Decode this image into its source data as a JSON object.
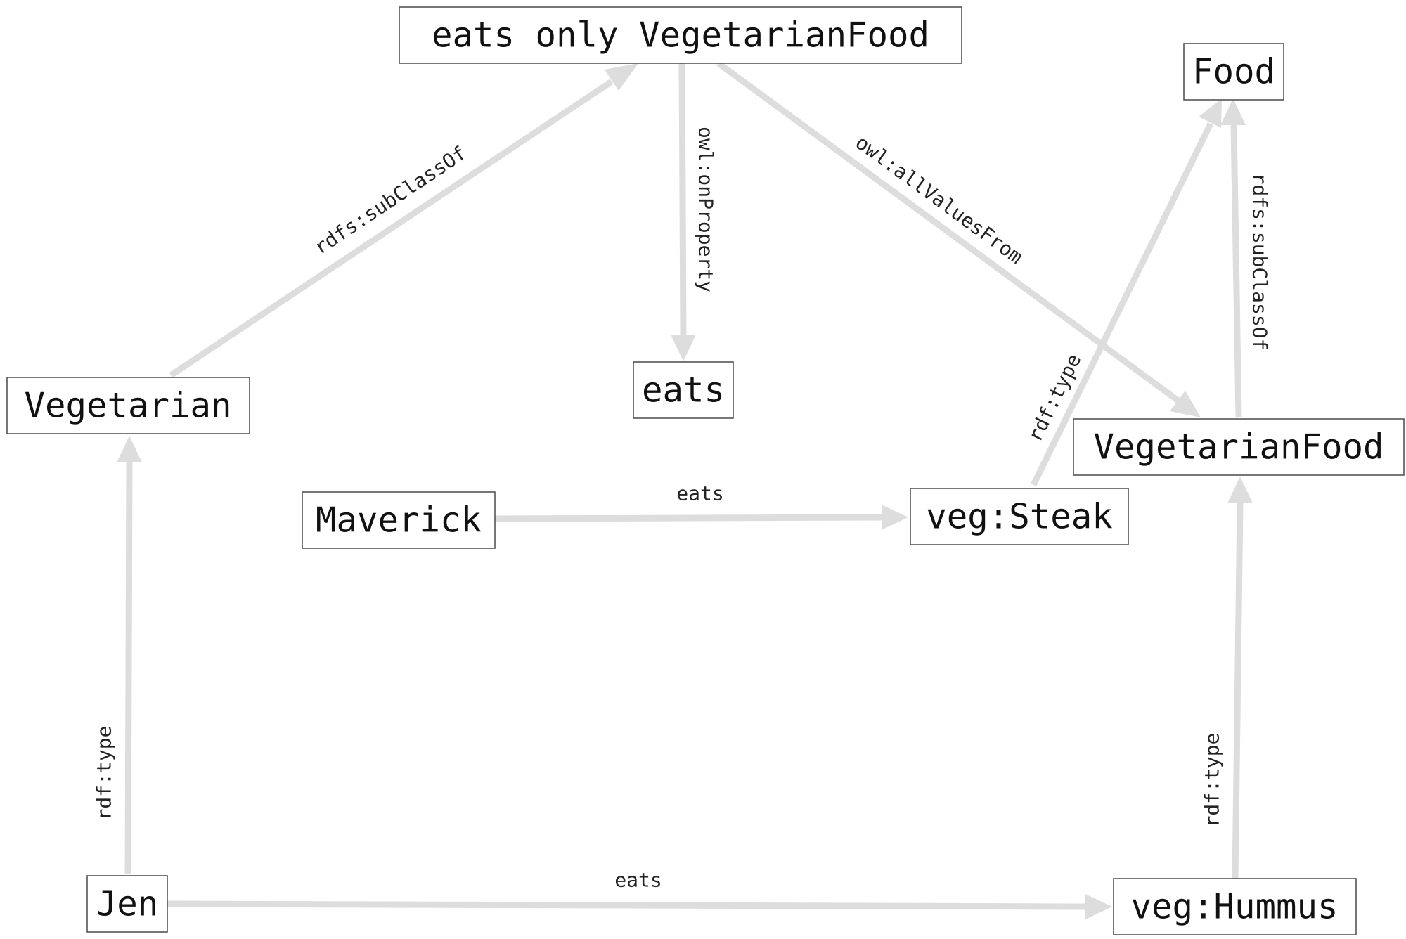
{
  "diagram": {
    "nodes": {
      "eats_only_vegetarianfood": "eats only VegetarianFood",
      "food": "Food",
      "vegetarian": "Vegetarian",
      "eats": "eats",
      "vegetarianfood": "VegetarianFood",
      "maverick": "Maverick",
      "veg_steak": "veg:Steak",
      "jen": "Jen",
      "veg_hummus": "veg:Hummus"
    },
    "edges": {
      "vegetarian_subclassof": "rdfs:subClassOf",
      "onproperty": "owl:onProperty",
      "allvaluesfrom": "owl:allValuesFrom",
      "steak_type": "rdf:type",
      "vegetarianfood_subclassof": "rdfs:subClassOf",
      "maverick_eats": "eats",
      "jen_type": "rdf:type",
      "jen_eats": "eats",
      "hummus_type": "rdf:type"
    }
  }
}
